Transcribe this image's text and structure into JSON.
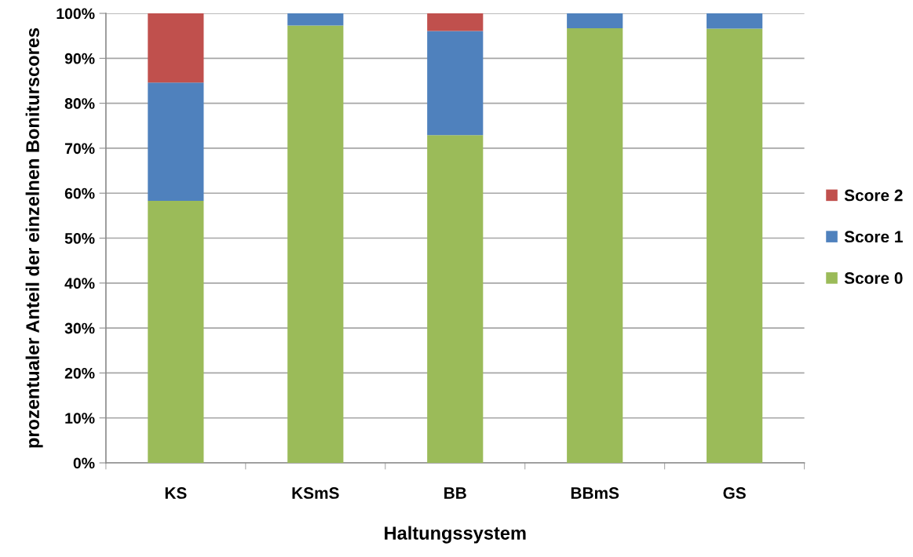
{
  "chart_data": {
    "type": "bar",
    "stacked": true,
    "xlabel": "Haltungssystem",
    "ylabel": "prozentualer Anteil der einzelnen Boniturscores",
    "categories": [
      "KS",
      "KSmS",
      "BB",
      "BBmS",
      "GS"
    ],
    "series": [
      {
        "name": "Score 0",
        "color": "#9bbb59",
        "values": [
          58.3,
          97.3,
          72.9,
          96.7,
          96.6
        ]
      },
      {
        "name": "Score 1",
        "color": "#4f81bd",
        "values": [
          26.3,
          2.7,
          23.2,
          3.3,
          3.4
        ]
      },
      {
        "name": "Score 2",
        "color": "#c0504d",
        "values": [
          15.4,
          null,
          3.9,
          null,
          null
        ]
      }
    ],
    "ylim": [
      0,
      100
    ],
    "yticks": [
      {
        "value": 0,
        "label": "0%"
      },
      {
        "value": 10,
        "label": "10%"
      },
      {
        "value": 20,
        "label": "20%"
      },
      {
        "value": 30,
        "label": "30%"
      },
      {
        "value": 40,
        "label": "40%"
      },
      {
        "value": 50,
        "label": "50%"
      },
      {
        "value": 60,
        "label": "60%"
      },
      {
        "value": 70,
        "label": "70%"
      },
      {
        "value": 80,
        "label": "80%"
      },
      {
        "value": 90,
        "label": "90%"
      },
      {
        "value": 100,
        "label": "100%"
      }
    ],
    "grid": "y",
    "legend": "right"
  }
}
